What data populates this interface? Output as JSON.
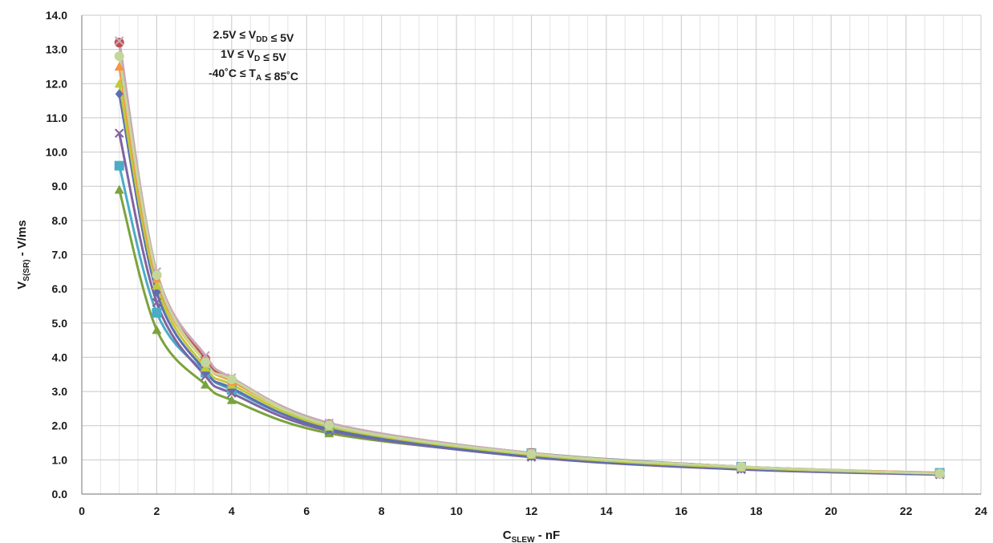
{
  "chart_data": {
    "type": "scatter",
    "title": "",
    "xlabel": {
      "main": "C",
      "sub": "SLEW",
      "rest": " - nF"
    },
    "ylabel": {
      "main": "V",
      "sub": "S(SR)",
      "rest": "  - V/ms"
    },
    "xlim": [
      0,
      24
    ],
    "ylim": [
      0,
      14
    ],
    "x_ticks": [
      "0",
      "2",
      "4",
      "6",
      "8",
      "10",
      "12",
      "14",
      "16",
      "18",
      "20",
      "22",
      "24"
    ],
    "y_ticks": [
      "0.0",
      "1.0",
      "2.0",
      "3.0",
      "4.0",
      "5.0",
      "6.0",
      "7.0",
      "8.0",
      "9.0",
      "10.0",
      "11.0",
      "12.0",
      "13.0",
      "14.0"
    ],
    "grid": true,
    "smooth_lines": true,
    "legend": "none",
    "annotations": [
      {
        "parts": [
          [
            "2.5V ≤ V",
            ""
          ],
          [
            "DD",
            "sub"
          ],
          [
            " ≤ 5V",
            ""
          ]
        ]
      },
      {
        "parts": [
          [
            "1V ≤ V",
            ""
          ],
          [
            "D",
            "sub"
          ],
          [
            " ≤ 5V",
            ""
          ]
        ]
      },
      {
        "parts": [
          [
            "-40˚C ≤ T",
            ""
          ],
          [
            "A",
            "sub"
          ],
          [
            " ≤ 85˚C",
            ""
          ]
        ]
      }
    ],
    "series": [
      {
        "color": "#7BA33D",
        "marker": "triangle",
        "x": [
          1,
          2,
          3.3,
          4,
          6.6,
          12,
          17.6,
          22.9
        ],
        "values": [
          8.9,
          4.8,
          3.2,
          2.75,
          1.78,
          1.12,
          0.75,
          0.58
        ]
      },
      {
        "color": "#4BACC6",
        "marker": "square",
        "x": [
          1,
          2,
          3.3,
          4,
          6.6,
          12,
          17.6,
          22.9
        ],
        "values": [
          9.6,
          5.3,
          3.55,
          3.05,
          1.93,
          1.2,
          0.8,
          0.62
        ]
      },
      {
        "color": "#7F64A0",
        "marker": "x",
        "x": [
          1,
          2,
          3.3,
          4,
          6.6,
          12,
          17.6,
          22.9
        ],
        "values": [
          10.55,
          5.6,
          3.45,
          2.95,
          1.85,
          1.08,
          0.72,
          0.57
        ]
      },
      {
        "color": "#5B6FB0",
        "marker": "diamond",
        "x": [
          1,
          2,
          3.3,
          4,
          6.6,
          12,
          17.6,
          22.9
        ],
        "values": [
          11.7,
          5.9,
          3.6,
          3.1,
          1.9,
          1.1,
          0.74,
          0.58
        ]
      },
      {
        "color": "#C0C93B",
        "marker": "triangle",
        "x": [
          1,
          2,
          3.3,
          4,
          6.6,
          12,
          17.6,
          22.9
        ],
        "values": [
          12.0,
          6.1,
          3.7,
          3.2,
          1.97,
          1.15,
          0.77,
          0.6
        ]
      },
      {
        "color": "#F79646",
        "marker": "triangle",
        "x": [
          1,
          2,
          3.3,
          4,
          6.6,
          12,
          17.6,
          22.9
        ],
        "values": [
          12.5,
          6.3,
          3.85,
          3.3,
          2.05,
          1.2,
          0.8,
          0.62
        ]
      },
      {
        "color": "#C0504D",
        "marker": "circle",
        "x": [
          1,
          2,
          3.3,
          4,
          6.6,
          12,
          17.6,
          22.9
        ],
        "values": [
          13.2,
          6.4,
          3.95,
          3.35,
          2.05,
          1.2,
          0.8,
          0.6
        ]
      },
      {
        "color": "#C9A7B8",
        "marker": "x",
        "x": [
          1,
          2,
          3.3,
          4,
          6.6,
          12,
          17.6,
          22.9
        ],
        "values": [
          13.25,
          6.5,
          4.05,
          3.4,
          2.08,
          1.2,
          0.8,
          0.6
        ]
      },
      {
        "color": "#C4D79B",
        "marker": "circle",
        "x": [
          1,
          2,
          3.3,
          4,
          6.6,
          12,
          17.6,
          22.9
        ],
        "values": [
          12.8,
          6.4,
          3.85,
          3.35,
          2.02,
          1.18,
          0.8,
          0.6
        ]
      }
    ]
  }
}
